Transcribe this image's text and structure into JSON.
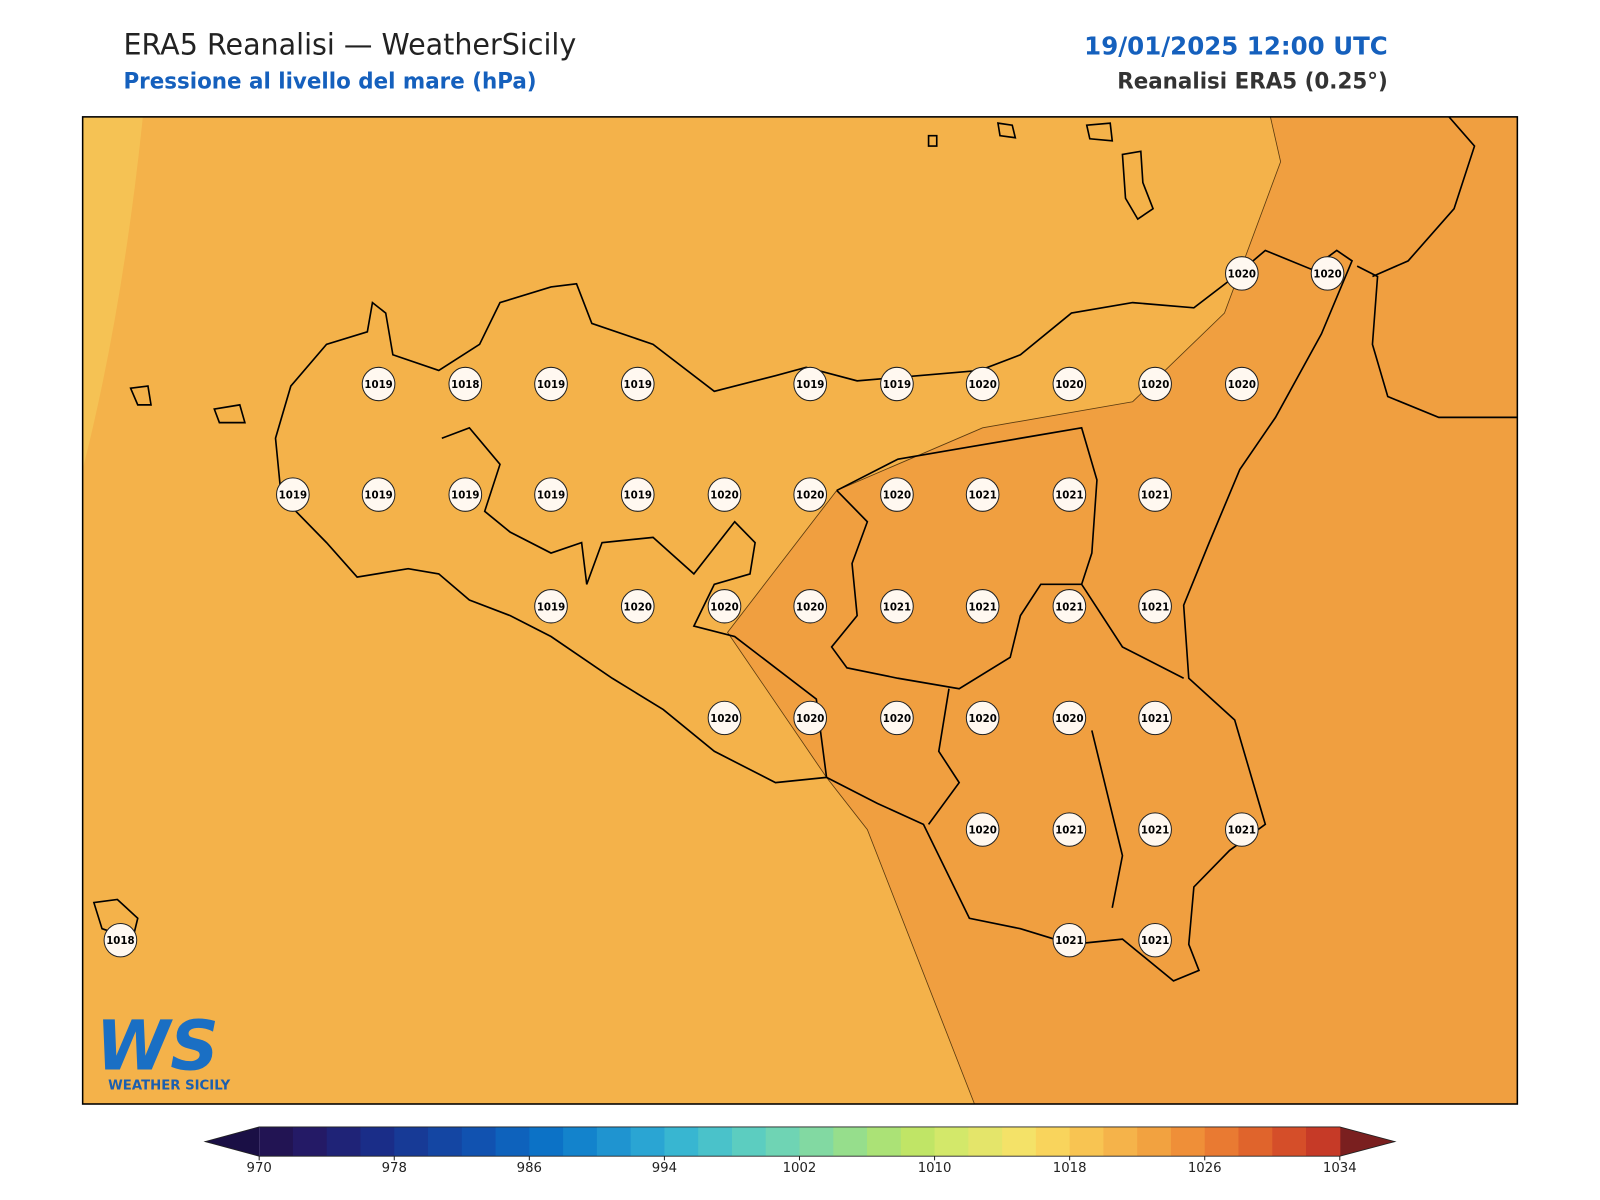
{
  "header": {
    "title": "ERA5 Reanalisi — WeatherSicily",
    "subtitle": "Pressione al livello del mare (hPa)",
    "datetime": "19/01/2025 12:00 UTC",
    "source": "Reanalisi ERA5 (0.25°)"
  },
  "stations": {
    "values": [
      1020,
      1020,
      1019,
      1018,
      1019,
      1019,
      1019,
      1019,
      1020,
      1020,
      1020,
      1020,
      1019,
      1019,
      1019,
      1019,
      1019,
      1020,
      1020,
      1020,
      1021,
      1021,
      1021,
      1019,
      1020,
      1020,
      1020,
      1021,
      1021,
      1021,
      1021,
      1020,
      1020,
      1020,
      1020,
      1020,
      1021,
      1020,
      1021,
      1021,
      1021,
      1018,
      1021,
      1021
    ]
  },
  "colorbar": {
    "ticks": [
      970,
      978,
      986,
      994,
      1002,
      1010,
      1018,
      1026,
      1034
    ],
    "colors": [
      "#221453",
      "#241a66",
      "#1f2377",
      "#1a2d88",
      "#173a96",
      "#1446a3",
      "#1152b0",
      "#0e62bc",
      "#0c72c6",
      "#1383cc",
      "#1f94d0",
      "#2aa5d3",
      "#38b6d1",
      "#4ac2ca",
      "#5ccdc0",
      "#6fd4b4",
      "#82d9a2",
      "#96de8c",
      "#abe276",
      "#c0e566",
      "#d3e86a",
      "#e4e56a",
      "#f4e268",
      "#f9d45c",
      "#f8c452",
      "#f5b34a",
      "#f2a240",
      "#ef8f38",
      "#e97a32",
      "#e0642c",
      "#d54e29",
      "#c63a27"
    ],
    "extend_colors": [
      "#1a0f45",
      "#7a1f1f"
    ]
  },
  "logo": {
    "mark": "WS",
    "name": "WEATHER SICILY"
  }
}
